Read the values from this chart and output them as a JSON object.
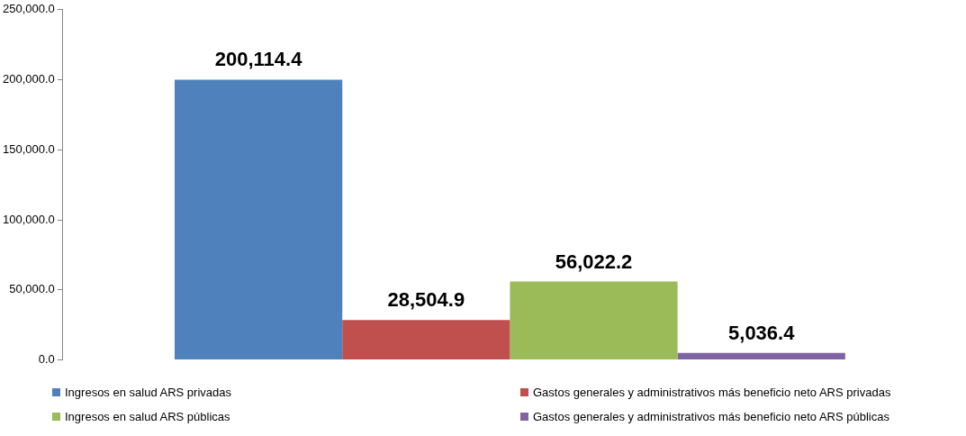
{
  "chart_data": {
    "type": "bar",
    "categories": [
      null
    ],
    "series": [
      {
        "name": "Ingresos en salud ARS privadas",
        "color": "#4f81bd",
        "values": [
          200114.4
        ],
        "value_labels": [
          "200,114.4"
        ]
      },
      {
        "name": "Gastos generales y administrativos más beneficio neto ARS privadas",
        "color": "#c0504d",
        "values": [
          28504.9
        ],
        "value_labels": [
          "28,504.9"
        ]
      },
      {
        "name": "Ingresos en salud ARS públicas",
        "color": "#9bbb59",
        "values": [
          56022.2
        ],
        "value_labels": [
          "56,022.2"
        ]
      },
      {
        "name": "Gastos generales y administrativos más beneficio neto ARS públicas",
        "color": "#8064a2",
        "values": [
          5036.4
        ],
        "value_labels": [
          "5,036.4"
        ]
      }
    ],
    "ylim": [
      0,
      250000
    ],
    "yticks": [
      {
        "value": 0,
        "label": "0.0"
      },
      {
        "value": 50000,
        "label": "50,000.0"
      },
      {
        "value": 100000,
        "label": "100,000.0"
      },
      {
        "value": 150000,
        "label": "150,000.0"
      },
      {
        "value": 200000,
        "label": "200,000.0"
      },
      {
        "value": 250000,
        "label": "250,000.0"
      }
    ],
    "grid": false,
    "legend": "bottom"
  }
}
